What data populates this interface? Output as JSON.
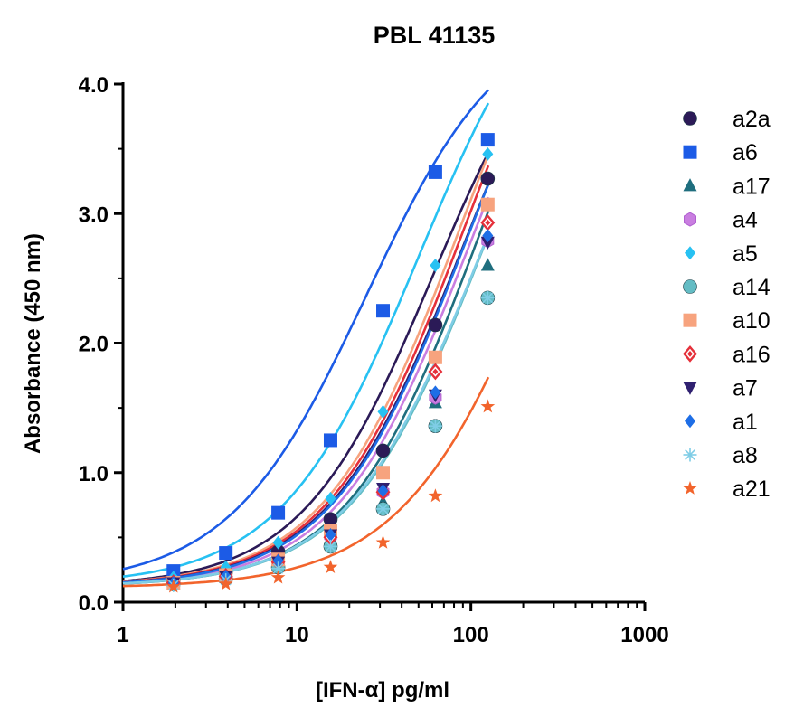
{
  "chart_data": {
    "type": "scatter",
    "title": "PBL 41135",
    "xlabel": "[IFN-α] pg/ml",
    "ylabel": "Absorbance (450 nm)",
    "xscale": "log",
    "xlim": [
      1,
      1000
    ],
    "ylim": [
      0,
      4
    ],
    "xticks": [
      1,
      10,
      100,
      1000
    ],
    "xtick_labels": [
      "1",
      "10",
      "100",
      "1000"
    ],
    "yticks": [
      0,
      1,
      2,
      3,
      4
    ],
    "ytick_labels": [
      "0.0",
      "1.0",
      "2.0",
      "3.0",
      "4.0"
    ],
    "grid": false,
    "legend": "right",
    "x": [
      1.95,
      3.9,
      7.8,
      15.6,
      31.25,
      62.5,
      125
    ],
    "series": [
      {
        "name": "a2a",
        "marker": "circle",
        "color": "#2b1a57",
        "values": [
          0.17,
          0.23,
          0.39,
          0.64,
          1.17,
          2.14,
          3.27
        ]
      },
      {
        "name": "a6",
        "marker": "square",
        "color": "#1c5be6",
        "values": [
          0.24,
          0.38,
          0.69,
          1.25,
          2.25,
          3.32,
          3.57
        ]
      },
      {
        "name": "a17",
        "marker": "triangle-up",
        "color": "#1f6e7e",
        "values": [
          0.14,
          0.19,
          0.3,
          0.49,
          0.77,
          1.54,
          2.6
        ]
      },
      {
        "name": "a4",
        "marker": "hexagon",
        "color": "#c97ee0",
        "values": [
          0.15,
          0.21,
          0.31,
          0.51,
          0.85,
          1.58,
          2.79
        ]
      },
      {
        "name": "a5",
        "marker": "diamond",
        "color": "#27c1f2",
        "values": [
          0.19,
          0.27,
          0.46,
          0.8,
          1.47,
          2.6,
          3.46
        ]
      },
      {
        "name": "a14",
        "marker": "circle",
        "color": "#63bcc4",
        "values": [
          0.14,
          0.18,
          0.27,
          0.43,
          0.72,
          1.36,
          2.35
        ]
      },
      {
        "name": "a10",
        "marker": "square",
        "color": "#f7a37e",
        "values": [
          0.15,
          0.21,
          0.33,
          0.55,
          1.0,
          1.89,
          3.07
        ]
      },
      {
        "name": "a16",
        "marker": "diamond-ring",
        "color": "#e5303a",
        "values": [
          0.15,
          0.2,
          0.31,
          0.5,
          0.85,
          1.78,
          2.93
        ]
      },
      {
        "name": "a7",
        "marker": "triangle-down",
        "color": "#2f2070",
        "values": [
          0.15,
          0.2,
          0.31,
          0.52,
          0.88,
          1.6,
          2.78
        ]
      },
      {
        "name": "a1",
        "marker": "diamond",
        "color": "#1e6ee6",
        "values": [
          0.15,
          0.2,
          0.32,
          0.52,
          0.86,
          1.62,
          2.83
        ]
      },
      {
        "name": "a8",
        "marker": "asterisk",
        "color": "#7fcde6",
        "values": [
          0.13,
          0.17,
          0.26,
          0.43,
          0.72,
          1.36,
          2.35
        ]
      },
      {
        "name": "a21",
        "marker": "star",
        "color": "#f2642c",
        "values": [
          0.12,
          0.14,
          0.19,
          0.27,
          0.46,
          0.82,
          1.51
        ]
      }
    ],
    "fits": [
      {
        "name": "a2a",
        "top": 4.9,
        "ec50": 60,
        "hill": 1.15,
        "bottom": 0.12
      },
      {
        "name": "a6",
        "top": 4.6,
        "ec50": 25,
        "hill": 1.1,
        "bottom": 0.13
      },
      {
        "name": "a17",
        "top": 5.5,
        "ec50": 110,
        "hill": 1.15,
        "bottom": 0.12
      },
      {
        "name": "a4",
        "top": 5.3,
        "ec50": 95,
        "hill": 1.15,
        "bottom": 0.12
      },
      {
        "name": "a5",
        "top": 5.2,
        "ec50": 50,
        "hill": 1.1,
        "bottom": 0.13
      },
      {
        "name": "a14",
        "top": 5.4,
        "ec50": 120,
        "hill": 1.12,
        "bottom": 0.12
      },
      {
        "name": "a10",
        "top": 5.6,
        "ec50": 85,
        "hill": 1.12,
        "bottom": 0.12
      },
      {
        "name": "a16",
        "top": 5.6,
        "ec50": 90,
        "hill": 1.12,
        "bottom": 0.12
      },
      {
        "name": "a7",
        "top": 5.3,
        "ec50": 88,
        "hill": 1.13,
        "bottom": 0.12
      },
      {
        "name": "a1",
        "top": 5.4,
        "ec50": 92,
        "hill": 1.13,
        "bottom": 0.12
      },
      {
        "name": "a8",
        "top": 5.3,
        "ec50": 115,
        "hill": 1.12,
        "bottom": 0.12
      },
      {
        "name": "a21",
        "top": 5.5,
        "ec50": 280,
        "hill": 1.05,
        "bottom": 0.11
      }
    ]
  }
}
